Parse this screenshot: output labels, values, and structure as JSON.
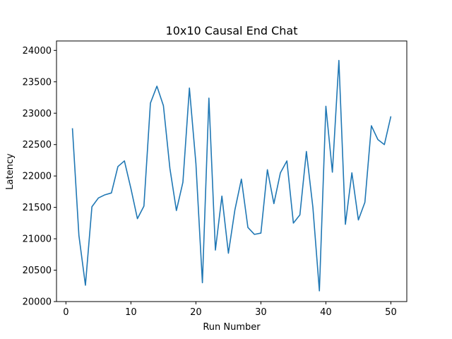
{
  "chart_data": {
    "type": "line",
    "title": "10x10 Causal End Chat",
    "xlabel": "Run Number",
    "ylabel": "Latency",
    "xlim": [
      -1.45,
      52.45
    ],
    "ylim": [
      20000,
      24150
    ],
    "xticks": [
      0,
      10,
      20,
      30,
      40,
      50
    ],
    "yticks": [
      20000,
      20500,
      21000,
      21500,
      22000,
      22500,
      23000,
      23500,
      24000
    ],
    "grid": false,
    "series_color": "#1f77b4",
    "x": [
      1,
      2,
      3,
      4,
      5,
      6,
      7,
      8,
      9,
      10,
      11,
      12,
      13,
      14,
      15,
      16,
      17,
      18,
      19,
      20,
      21,
      22,
      23,
      24,
      25,
      26,
      27,
      28,
      29,
      30,
      31,
      32,
      33,
      34,
      35,
      36,
      37,
      38,
      39,
      40,
      41,
      42,
      43,
      44,
      45,
      46,
      47,
      48,
      49,
      50
    ],
    "values": [
      22760,
      21050,
      20260,
      21510,
      21650,
      21700,
      21730,
      22150,
      22240,
      21800,
      21320,
      21520,
      23160,
      23430,
      23120,
      22120,
      21450,
      21900,
      23400,
      22200,
      20300,
      23240,
      20820,
      21680,
      20770,
      21460,
      21950,
      21180,
      21070,
      21090,
      22100,
      21560,
      22050,
      22240,
      21250,
      21380,
      22390,
      21500,
      20170,
      23110,
      22060,
      23840,
      21230,
      22050,
      21300,
      21580,
      22800,
      22580,
      22500,
      22950
    ]
  }
}
